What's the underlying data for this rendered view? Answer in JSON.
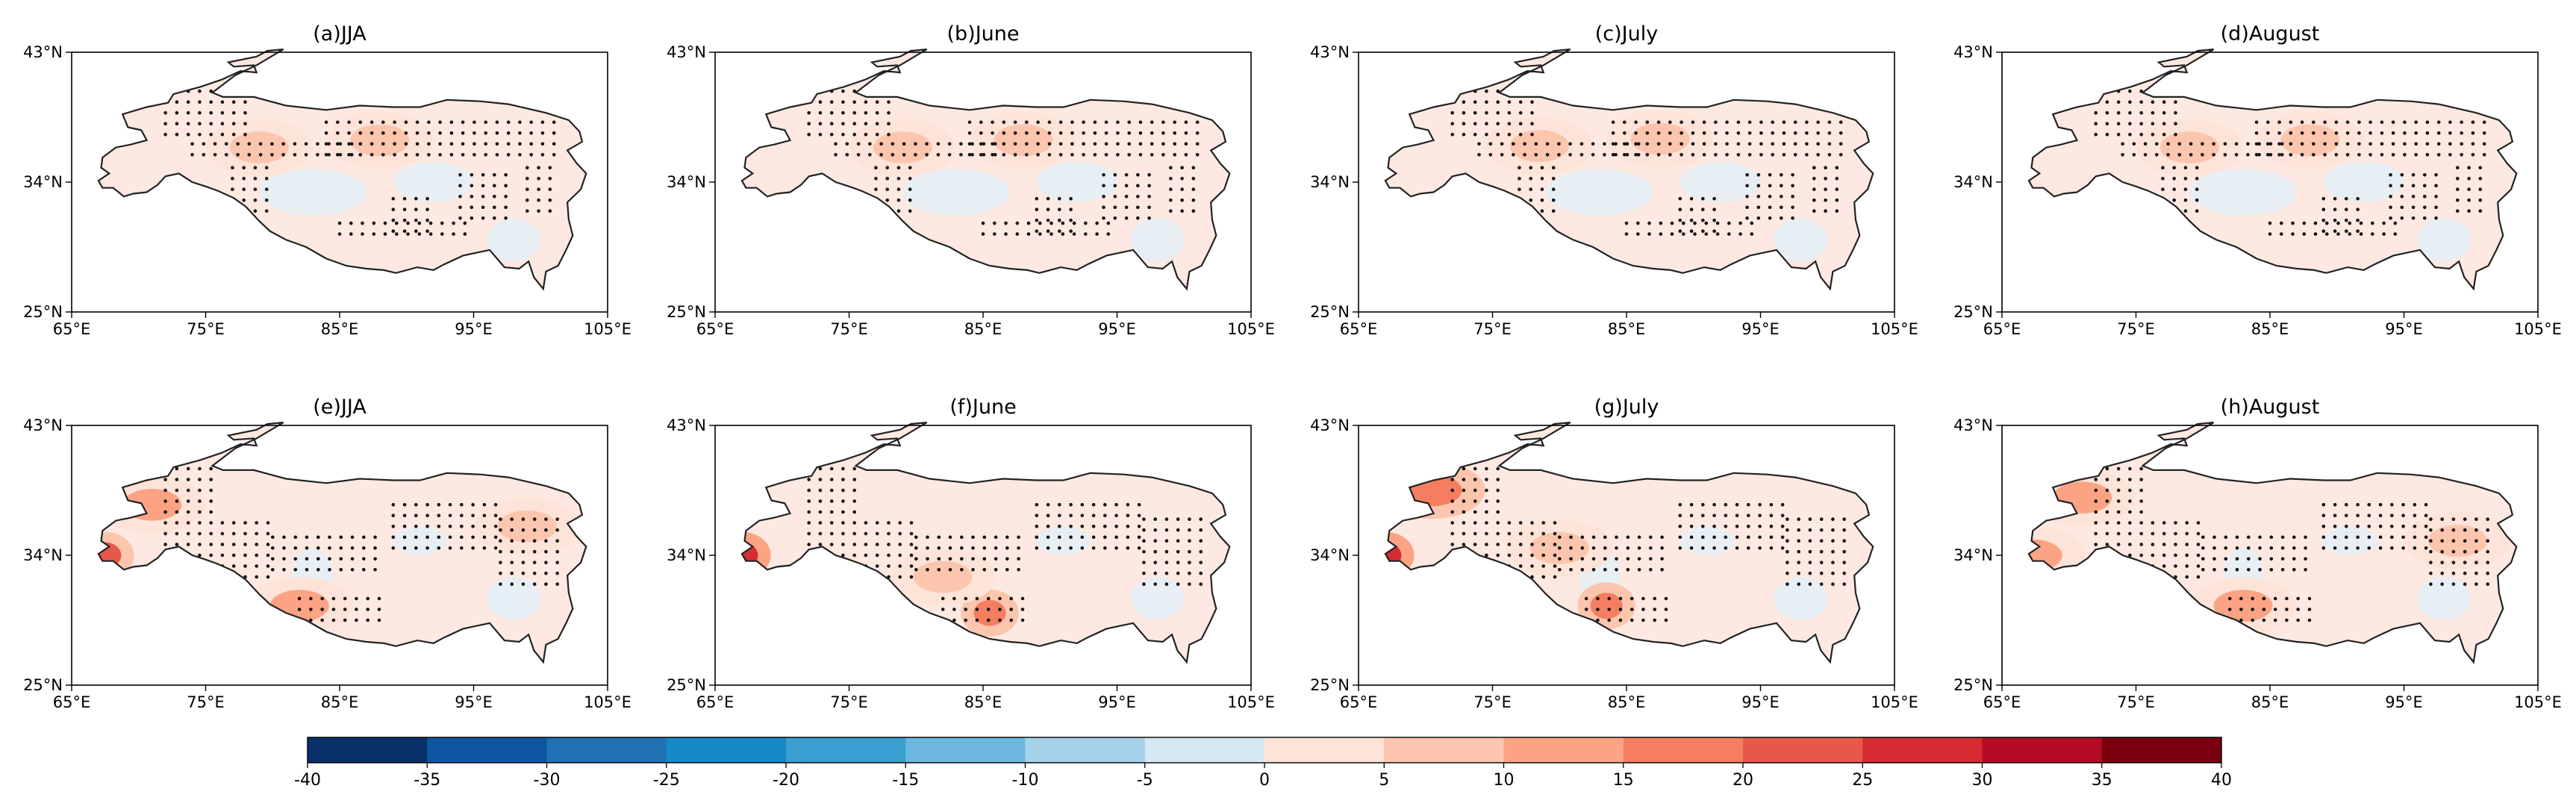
{
  "figure": {
    "panels": [
      {
        "title": "(a)JJA"
      },
      {
        "title": "(b)June"
      },
      {
        "title": "(c)July"
      },
      {
        "title": "(d)August"
      },
      {
        "title": "(e)JJA"
      },
      {
        "title": "(f)June"
      },
      {
        "title": "(g)July"
      },
      {
        "title": "(h)August"
      }
    ],
    "x_ticks": [
      "65°E",
      "75°E",
      "85°E",
      "95°E",
      "105°E"
    ],
    "y_ticks": [
      "43°N",
      "34°N",
      "25°N"
    ],
    "extent": {
      "lon": [
        65,
        105
      ],
      "lat": [
        25,
        43
      ]
    }
  },
  "chart_data": {
    "type": "heatmap",
    "map": "Tibetan Plateau, gridded anomaly with stippled significant areas",
    "colorbar": {
      "ticks": [
        "-40",
        "-35",
        "-30",
        "-25",
        "-20",
        "-15",
        "-10",
        "-5",
        "0",
        "5",
        "10",
        "15",
        "20",
        "25",
        "30",
        "35",
        "40"
      ],
      "levels": [
        -40,
        -35,
        -30,
        -25,
        -20,
        -15,
        -10,
        -5,
        0,
        5,
        10,
        15,
        20,
        25,
        30,
        35,
        40
      ],
      "colors": [
        "#08306b",
        "#0d57a1",
        "#2171b5",
        "#1589c7",
        "#3a9fd0",
        "#6cb8e0",
        "#a6d2ea",
        "#d6e8f2",
        "#e9f0f5",
        "#fde3d8",
        "#fcc5ae",
        "#fca384",
        "#f57e60",
        "#e8584a",
        "#d52c32",
        "#b40c24",
        "#7a0010"
      ]
    },
    "hotspots": {
      "a": [
        {
          "lon": 79,
          "lat": 36.4,
          "v": 12
        },
        {
          "lon": 88,
          "lat": 36.9,
          "v": 14
        }
      ],
      "b": [
        {
          "lon": 79,
          "lat": 36.4,
          "v": 13
        },
        {
          "lon": 88,
          "lat": 36.9,
          "v": 14
        }
      ],
      "c": [
        {
          "lon": 78.5,
          "lat": 36.5,
          "v": 11
        },
        {
          "lon": 87.5,
          "lat": 37.0,
          "v": 13
        }
      ],
      "d": [
        {
          "lon": 79,
          "lat": 36.4,
          "v": 12
        },
        {
          "lon": 88,
          "lat": 36.9,
          "v": 14
        }
      ],
      "e": [
        {
          "lon": 67.5,
          "lat": 34.0,
          "v": 25
        },
        {
          "lon": 71,
          "lat": 37.5,
          "v": 16
        },
        {
          "lon": 82,
          "lat": 30.5,
          "v": 17
        },
        {
          "lon": 99,
          "lat": 36,
          "v": 11
        }
      ],
      "f": [
        {
          "lon": 67,
          "lat": 34.0,
          "v": 34
        },
        {
          "lon": 85.5,
          "lat": 30.0,
          "v": 22
        },
        {
          "lon": 82,
          "lat": 32.5,
          "v": 12
        }
      ],
      "g": [
        {
          "lon": 67,
          "lat": 34.0,
          "v": 33
        },
        {
          "lon": 70.5,
          "lat": 38.5,
          "v": 20
        },
        {
          "lon": 83.5,
          "lat": 30.5,
          "v": 22
        },
        {
          "lon": 80,
          "lat": 34.5,
          "v": 12
        }
      ],
      "h": [
        {
          "lon": 67.3,
          "lat": 34.0,
          "v": 16
        },
        {
          "lon": 71,
          "lat": 38,
          "v": 18
        },
        {
          "lon": 83,
          "lat": 30.5,
          "v": 18
        },
        {
          "lon": 99,
          "lat": 35,
          "v": 14
        }
      ]
    }
  }
}
